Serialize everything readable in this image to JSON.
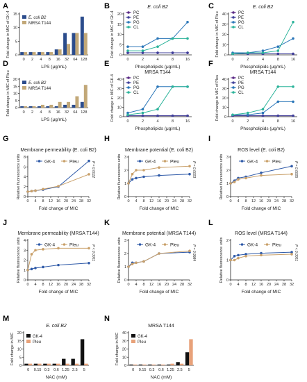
{
  "chart_data": [
    {
      "letter": "A",
      "type": "bar",
      "title": "",
      "xlabel": "LPS (μg/mL)",
      "ylabel": "Fold change in MIC of GK-4",
      "categories": [
        "0",
        "2",
        "4",
        "8",
        "16",
        "32",
        "64",
        "128"
      ],
      "ylim": [
        0,
        15
      ],
      "yticks": [
        0,
        5,
        10,
        15
      ],
      "legend": "top-left",
      "series": [
        {
          "name": "E. coli B2",
          "color": "#2b4c8c",
          "values": [
            1,
            1,
            1,
            1,
            2,
            8,
            8,
            14
          ]
        },
        {
          "name": "MRSA T144",
          "color": "#c2a878",
          "values": [
            1,
            1,
            1,
            1,
            2,
            4,
            8,
            8
          ]
        }
      ]
    },
    {
      "letter": "B",
      "type": "line",
      "title": "E. coli B2",
      "xlabel": "Phospholipids (μg/mL)",
      "ylabel": "Fold change in MIC of GK-4",
      "x": [
        "0",
        "2",
        "4",
        "8",
        "16"
      ],
      "ylim": [
        0,
        20
      ],
      "yticks": [
        0,
        5,
        10,
        15,
        20
      ],
      "legend": "top-left",
      "series": [
        {
          "name": "PC",
          "color": "#5b2a86",
          "values": [
            1,
            1,
            1,
            1,
            1
          ]
        },
        {
          "name": "PE",
          "color": "#3f3f9a",
          "values": [
            1,
            1,
            1,
            1,
            1
          ]
        },
        {
          "name": "PG",
          "color": "#2a76b8",
          "values": [
            4,
            4,
            8,
            8,
            16
          ]
        },
        {
          "name": "CL",
          "color": "#2bb39a",
          "values": [
            2,
            2,
            4,
            8,
            8
          ]
        }
      ]
    },
    {
      "letter": "C",
      "type": "line",
      "title": "E. coli B2",
      "xlabel": "Phospholipids (μg/mL)",
      "ylabel": "Fold change in MIC of Pleu",
      "x": [
        "0",
        "2",
        "4",
        "8",
        "16"
      ],
      "ylim": [
        0,
        40
      ],
      "yticks": [
        0,
        10,
        20,
        30,
        40
      ],
      "legend": "top-left",
      "series": [
        {
          "name": "PC",
          "color": "#5b2a86",
          "values": [
            1,
            1,
            1,
            1,
            1
          ]
        },
        {
          "name": "PE",
          "color": "#3f3f9a",
          "values": [
            1,
            1,
            1,
            1,
            1
          ]
        },
        {
          "name": "PG",
          "color": "#2a76b8",
          "values": [
            2,
            2,
            4,
            8,
            16
          ]
        },
        {
          "name": "CL",
          "color": "#2bb39a",
          "values": [
            1,
            2,
            2,
            4,
            32
          ]
        }
      ]
    },
    {
      "letter": "D",
      "type": "bar",
      "title": "",
      "xlabel": "LPS (μg/mL)",
      "ylabel": "Fold change in MIC of Pleu",
      "categories": [
        "0",
        "2",
        "4",
        "8",
        "16",
        "32",
        "64",
        "128"
      ],
      "ylim": [
        0,
        20
      ],
      "yticks": [
        0,
        5,
        10,
        15,
        20
      ],
      "legend": "top-left",
      "series": [
        {
          "name": "E. coli B2",
          "color": "#2b4c8c",
          "values": [
            1,
            1,
            1,
            1,
            1,
            2,
            2,
            4
          ]
        },
        {
          "name": "MRSA T144",
          "color": "#c2a878",
          "values": [
            1,
            1,
            2,
            2,
            4,
            4,
            8,
            16
          ]
        }
      ]
    },
    {
      "letter": "E",
      "type": "line",
      "title": "MRSA T144",
      "xlabel": "Phospholipids (μg/mL)",
      "ylabel": "Fold change in MIC of GK-4",
      "x": [
        "0",
        "2",
        "4",
        "8",
        "16"
      ],
      "ylim": [
        0,
        40
      ],
      "yticks": [
        0,
        10,
        20,
        30,
        40
      ],
      "legend": "top-left",
      "series": [
        {
          "name": "PC",
          "color": "#5b2a86",
          "values": [
            1,
            1,
            1,
            1,
            1
          ]
        },
        {
          "name": "PE",
          "color": "#3f3f9a",
          "values": [
            1,
            1,
            1,
            1,
            1
          ]
        },
        {
          "name": "PG",
          "color": "#2a76b8",
          "values": [
            4,
            8,
            32,
            32,
            32
          ]
        },
        {
          "name": "CL",
          "color": "#2bb39a",
          "values": [
            2,
            4,
            8,
            32,
            32
          ]
        }
      ]
    },
    {
      "letter": "F",
      "type": "line",
      "title": "MRSA T144",
      "xlabel": "Phospholipids (μg/mL)",
      "ylabel": "Fold change in MIC of Pleu",
      "x": [
        "0",
        "2",
        "4",
        "8",
        "16"
      ],
      "ylim": [
        0,
        40
      ],
      "yticks": [
        0,
        10,
        20,
        30,
        40
      ],
      "legend": "top-left",
      "series": [
        {
          "name": "PC",
          "color": "#5b2a86",
          "values": [
            1,
            1,
            1,
            1,
            1
          ]
        },
        {
          "name": "PE",
          "color": "#3f3f9a",
          "values": [
            1,
            1,
            1,
            1,
            1
          ]
        },
        {
          "name": "PG",
          "color": "#2a76b8",
          "values": [
            2,
            2,
            4,
            16,
            16
          ]
        },
        {
          "name": "CL",
          "color": "#2bb39a",
          "values": [
            2,
            4,
            8,
            32,
            32
          ]
        }
      ]
    },
    {
      "letter": "G",
      "type": "line",
      "title": "Membrane permeability (E. coli B2)",
      "xlabel": "Fold change of MIC",
      "ylabel": "Relative fluorescence units",
      "x": [
        0,
        2,
        4,
        8,
        16,
        32
      ],
      "xlim": [
        0,
        32
      ],
      "xticks": [
        0,
        4,
        8,
        12,
        16,
        20,
        24,
        28,
        32
      ],
      "ylim": [
        0,
        8
      ],
      "yticks": [
        0,
        2,
        4,
        6,
        8
      ],
      "legend": "top",
      "pvalue": "P = 0.0012",
      "series": [
        {
          "name": "GK-4",
          "color": "#2f5aa8",
          "values": [
            1.0,
            1.1,
            1.2,
            1.4,
            2.0,
            7.2
          ]
        },
        {
          "name": "Pleu",
          "color": "#c9a06a",
          "values": [
            1.0,
            1.1,
            1.2,
            1.5,
            2.1,
            4.5
          ]
        }
      ]
    },
    {
      "letter": "H",
      "type": "line",
      "title": "Membrane potential (E. coli B2)",
      "xlabel": "Fold change of MIC",
      "ylabel": "Relative fluorescence units",
      "x": [
        0,
        2,
        4,
        8,
        16,
        32
      ],
      "xlim": [
        0,
        32
      ],
      "xticks": [
        0,
        4,
        8,
        12,
        16,
        20,
        24,
        28,
        32
      ],
      "ylim": [
        0,
        3
      ],
      "yticks": [
        0,
        1,
        2,
        3
      ],
      "legend": "top",
      "pvalue": "P = 0.0003",
      "series": [
        {
          "name": "GK-4",
          "color": "#2f5aa8",
          "values": [
            1.0,
            1.3,
            1.4,
            1.5,
            1.6,
            1.7
          ]
        },
        {
          "name": "Pleu",
          "color": "#c9a06a",
          "values": [
            1.0,
            1.7,
            2.0,
            2.0,
            2.2,
            2.3
          ]
        }
      ]
    },
    {
      "letter": "I",
      "type": "line",
      "title": "ROS level (E. coli B2)",
      "xlabel": "Fold change of MIC",
      "ylabel": "Relative fluorescence units",
      "x": [
        0,
        2,
        4,
        8,
        16,
        32
      ],
      "xlim": [
        0,
        32
      ],
      "xticks": [
        0,
        4,
        8,
        12,
        16,
        20,
        24,
        28,
        32
      ],
      "ylim": [
        0,
        3
      ],
      "yticks": [
        0,
        1,
        2,
        3
      ],
      "legend": "top",
      "pvalue": "P = 0.0005",
      "series": [
        {
          "name": "GK-4",
          "color": "#2f5aa8",
          "values": [
            1.0,
            1.2,
            1.4,
            1.5,
            1.8,
            2.3
          ]
        },
        {
          "name": "Pleu",
          "color": "#c9a06a",
          "values": [
            1.0,
            1.1,
            1.3,
            1.4,
            1.6,
            1.7
          ]
        }
      ]
    },
    {
      "letter": "J",
      "type": "line",
      "title": "Membrane permeability (MRSA T144)",
      "xlabel": "Fold change of MIC",
      "ylabel": "Relative fluorescence units",
      "x": [
        0,
        2,
        4,
        8,
        16,
        32
      ],
      "xlim": [
        0,
        32
      ],
      "xticks": [
        0,
        4,
        8,
        12,
        16,
        20,
        24,
        28,
        32
      ],
      "ylim": [
        0,
        4
      ],
      "yticks": [
        0,
        1,
        2,
        3,
        4
      ],
      "legend": "top",
      "pvalue": "P < 0.0001",
      "series": [
        {
          "name": "GK-4",
          "color": "#2f5aa8",
          "values": [
            1.0,
            1.1,
            1.2,
            1.3,
            1.5,
            1.7
          ]
        },
        {
          "name": "Pleu",
          "color": "#c9a06a",
          "values": [
            1.0,
            2.6,
            3.0,
            3.1,
            3.2,
            3.2
          ]
        }
      ]
    },
    {
      "letter": "K",
      "type": "line",
      "title": "Membrane potential (MRSA T144)",
      "xlabel": "Fold change of MIC",
      "ylabel": "Relative fluorescence units",
      "x": [
        0,
        2,
        4,
        8,
        16,
        32
      ],
      "xlim": [
        0,
        32
      ],
      "xticks": [
        0,
        4,
        8,
        12,
        16,
        20,
        24,
        28,
        32
      ],
      "ylim": [
        0,
        3
      ],
      "yticks": [
        0,
        1,
        2,
        3
      ],
      "legend": "top",
      "pvalue": "P = 0.9984",
      "series": [
        {
          "name": "GK-4",
          "color": "#2f5aa8",
          "values": [
            1.0,
            1.3,
            1.3,
            1.4,
            2.0,
            2.1
          ]
        },
        {
          "name": "Pleu",
          "color": "#c9a06a",
          "values": [
            1.0,
            1.2,
            1.3,
            1.4,
            2.0,
            2.2
          ]
        }
      ]
    },
    {
      "letter": "L",
      "type": "line",
      "title": "ROS level (MRSA T144)",
      "xlabel": "Fold change of MIC",
      "ylabel": "Relative fluorescence units",
      "x": [
        0,
        2,
        4,
        8,
        16,
        32
      ],
      "xlim": [
        0,
        32
      ],
      "xticks": [
        0,
        4,
        8,
        12,
        16,
        20,
        24,
        28,
        32
      ],
      "ylim": [
        0,
        2
      ],
      "yticks": [
        0,
        1,
        2
      ],
      "legend": "top",
      "pvalue": "P < 0.0001",
      "series": [
        {
          "name": "GK-4",
          "color": "#2f5aa8",
          "values": [
            1.0,
            1.2,
            1.25,
            1.3,
            1.35,
            1.4
          ]
        },
        {
          "name": "Pleu",
          "color": "#c9a06a",
          "values": [
            1.0,
            1.0,
            1.1,
            1.2,
            1.25,
            1.3
          ]
        }
      ]
    },
    {
      "letter": "M",
      "type": "bar",
      "title": "E. coli B2",
      "xlabel": "NAC (mM)",
      "ylabel": "Fold change in MIC",
      "categories": [
        "0",
        "0.15",
        "0.3",
        "0.6",
        "1.25",
        "2.5",
        "5"
      ],
      "ylim": [
        0,
        20
      ],
      "yticks": [
        0,
        5,
        10,
        15,
        20
      ],
      "legend": "top-left",
      "series": [
        {
          "name": "GK-4",
          "color": "#111111",
          "values": [
            1,
            1,
            1,
            1,
            4,
            4,
            16
          ]
        },
        {
          "name": "Pleu",
          "color": "#e8a27a",
          "values": [
            1,
            1,
            1,
            1,
            1,
            1,
            1
          ]
        }
      ]
    },
    {
      "letter": "N",
      "type": "bar",
      "title": "MRSA T144",
      "xlabel": "NAC (mM)",
      "ylabel": "Fold change in MIC",
      "categories": [
        "0",
        "0.15",
        "0.3",
        "0.6",
        "1.25",
        "2.5",
        "5"
      ],
      "ylim": [
        0,
        40
      ],
      "yticks": [
        0,
        10,
        20,
        30,
        40
      ],
      "legend": "top-left",
      "series": [
        {
          "name": "GK-4",
          "color": "#111111",
          "values": [
            1,
            1,
            1,
            1,
            1,
            4,
            16
          ]
        },
        {
          "name": "Pleu",
          "color": "#e8a27a",
          "values": [
            1,
            1,
            1,
            1,
            2,
            2,
            32
          ]
        }
      ]
    }
  ]
}
